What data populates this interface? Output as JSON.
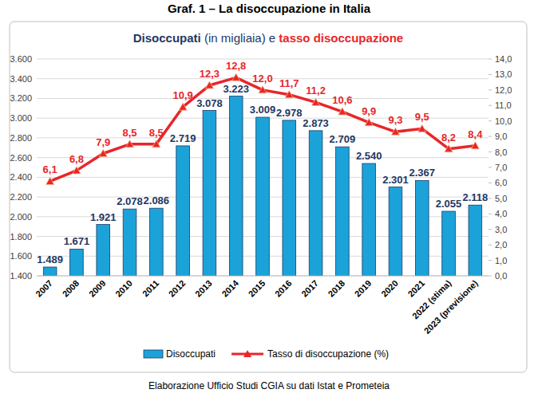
{
  "chart_data": {
    "type": "bar",
    "title": "Graf. 1 – La disoccupazione in Italia",
    "subtitle": [
      "Disoccupati",
      "(in migliaia) e",
      "tasso disoccupazione"
    ],
    "annotations": [
      "Elaborazione Ufficio Studi CGIA su dati Istat e Prometeia"
    ],
    "categories": [
      "2007",
      "2008",
      "2009",
      "2010",
      "2011",
      "2012",
      "2013",
      "2014",
      "2015",
      "2016",
      "2017",
      "2018",
      "2019",
      "2020",
      "2021",
      "2022 (stima)",
      "2023 (previsione)"
    ],
    "series": [
      {
        "name": "Disoccupati",
        "type": "bar",
        "color": "#1ba3d9",
        "values": [
          1489,
          1671,
          1921,
          2078,
          2086,
          2719,
          3078,
          3223,
          3009,
          2978,
          2873,
          2709,
          2540,
          2301,
          2367,
          2055,
          2118
        ],
        "value_labels": [
          "1.489",
          "1.671",
          "1.921",
          "2.078",
          "2.086",
          "2.719",
          "3.078",
          "3.223",
          "3.009",
          "2.978",
          "2.873",
          "2.709",
          "2.540",
          "2.301",
          "2.367",
          "2.055",
          "2.118"
        ]
      },
      {
        "name": "Tasso di disoccupazione (%)",
        "type": "line",
        "axis": "y2",
        "color": "#e8262a",
        "marker": "triangle",
        "values": [
          6.1,
          6.8,
          7.9,
          8.5,
          8.5,
          10.9,
          12.3,
          12.8,
          12.0,
          11.7,
          11.2,
          10.6,
          9.9,
          9.3,
          9.5,
          8.2,
          8.4
        ],
        "value_labels": [
          "6,1",
          "6,8",
          "7,9",
          "8,5",
          "8,5",
          "10,9",
          "12,3",
          "12,8",
          "12,0",
          "11,7",
          "11,2",
          "10,6",
          "9,9",
          "9,3",
          "9,5",
          "8,2",
          "8,4"
        ]
      }
    ],
    "ylim": [
      1400,
      3600
    ],
    "yticks": [
      {
        "value": 1400,
        "label": "1.400"
      },
      {
        "value": 1600,
        "label": "1.600"
      },
      {
        "value": 1800,
        "label": "1.800"
      },
      {
        "value": 2000,
        "label": "2.000"
      },
      {
        "value": 2200,
        "label": "2.200"
      },
      {
        "value": 2400,
        "label": "2.400"
      },
      {
        "value": 2600,
        "label": "2.600"
      },
      {
        "value": 2800,
        "label": "2.800"
      },
      {
        "value": 3000,
        "label": "3.000"
      },
      {
        "value": 3200,
        "label": "3.200"
      },
      {
        "value": 3400,
        "label": "3.400"
      },
      {
        "value": 3600,
        "label": "3.600"
      }
    ],
    "y2lim": [
      0,
      14
    ],
    "y2ticks": [
      {
        "value": 0,
        "label": "0,0"
      },
      {
        "value": 1,
        "label": "1,0"
      },
      {
        "value": 2,
        "label": "2,0"
      },
      {
        "value": 3,
        "label": "3,0"
      },
      {
        "value": 4,
        "label": "4,0"
      },
      {
        "value": 5,
        "label": "5,0"
      },
      {
        "value": 6,
        "label": "6,0"
      },
      {
        "value": 7,
        "label": "7,0"
      },
      {
        "value": 8,
        "label": "8,0"
      },
      {
        "value": 9,
        "label": "9,0"
      },
      {
        "value": 10,
        "label": "10,0"
      },
      {
        "value": 11,
        "label": "11,0"
      },
      {
        "value": 12,
        "label": "12,0"
      },
      {
        "value": 13,
        "label": "13,0"
      },
      {
        "value": 14,
        "label": "14,0"
      }
    ],
    "grid": true,
    "data_labels": true,
    "legend": "bottom"
  }
}
